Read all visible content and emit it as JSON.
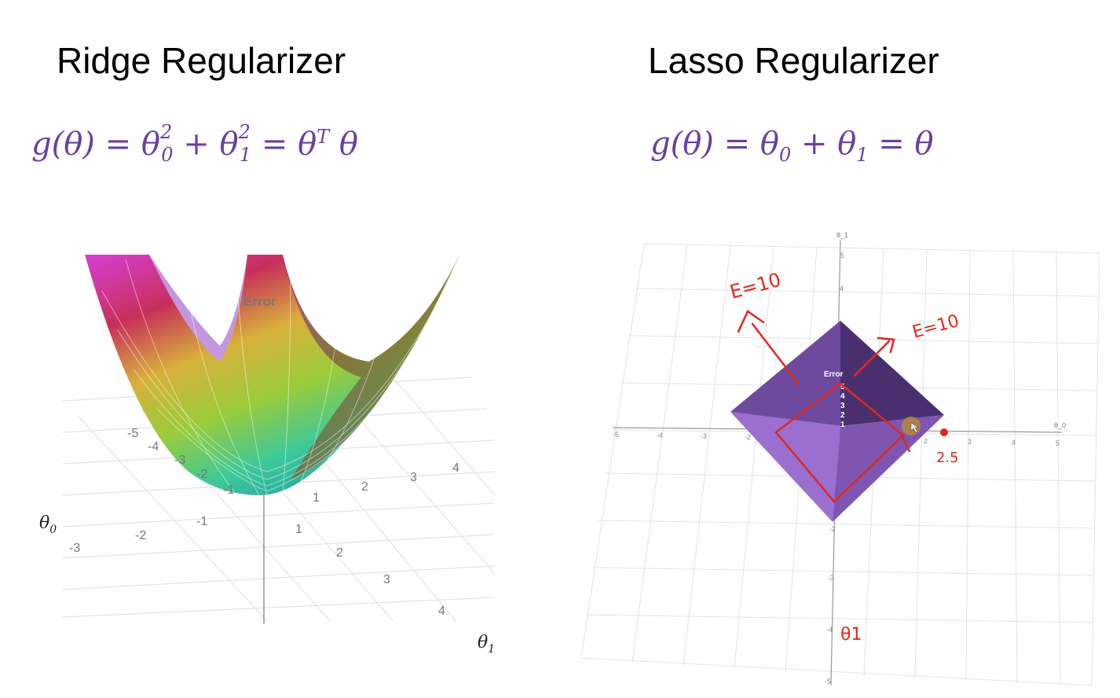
{
  "ridge": {
    "title": "Ridge Regularizer",
    "formula": {
      "lhs": "g(θ) =",
      "a": "θ",
      "a_sub": "0",
      "a_sup": "2",
      "plus": "+",
      "b": "θ",
      "b_sub": "1",
      "b_sup": "2",
      "eq": "=",
      "c": "θ",
      "c_sup": "T",
      "d": "θ"
    },
    "plot": {
      "surface_label": "Error",
      "theta0_label": "θ",
      "theta0_sub": "0",
      "theta1_label": "θ",
      "theta1_sub": "1",
      "back_ticks": [
        "-5",
        "-4",
        "-3",
        "-2",
        "-1",
        "1",
        "2",
        "3",
        "4"
      ],
      "front_ticks": [
        "-3",
        "-2",
        "-1",
        "1",
        "2",
        "3",
        "4"
      ]
    }
  },
  "lasso": {
    "title": "Lasso Regularizer",
    "formula": {
      "lhs": "g(θ) =",
      "a": "θ",
      "a_sub": "0",
      "plus": "+",
      "b": "θ",
      "b_sub": "1",
      "eq": "=",
      "c": "θ"
    },
    "plot": {
      "axis_top_label": "θ_1",
      "axis_right_label": "θ_0",
      "x_ticks": [
        "-5",
        "-4",
        "-3",
        "-2",
        "2",
        "3",
        "4",
        "5"
      ],
      "y_ticks": [
        "5",
        "4",
        "-2",
        "-3",
        "-4",
        "-5"
      ],
      "surface_label": "Error",
      "z_ticks": [
        "5",
        "4",
        "3",
        "2",
        "1"
      ],
      "annotations": {
        "e1": "E=10",
        "e2": "E=10",
        "point": "2.5",
        "axis": "θ1"
      }
    }
  }
}
